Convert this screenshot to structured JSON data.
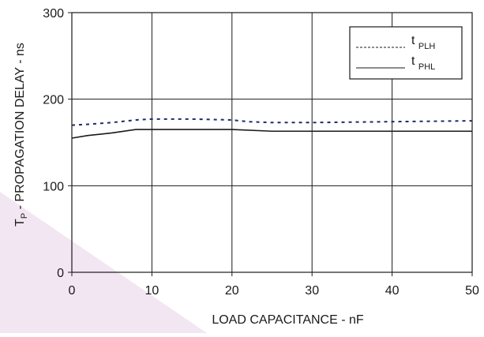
{
  "chart_data": {
    "type": "line",
    "title": "",
    "xlabel": "LOAD CAPACITANCE - nF",
    "ylabel": {
      "main": "T",
      "sub": "P",
      "rest": " - PROPAGATION DELAY - ns"
    },
    "xlim": [
      0,
      50
    ],
    "ylim": [
      0,
      300
    ],
    "xticks": [
      0,
      10,
      20,
      30,
      40,
      50
    ],
    "yticks": [
      0,
      100,
      200,
      300
    ],
    "grid": true,
    "legend_position": "top-right",
    "series": [
      {
        "name": "t PLH",
        "legend_main": "t",
        "legend_sub": "PLH",
        "style": "dashed",
        "color": "#1f2a6b",
        "x": [
          0,
          2,
          5,
          8,
          10,
          15,
          20,
          22,
          25,
          30,
          40,
          50
        ],
        "y": [
          170,
          171,
          173,
          176,
          177,
          177,
          176,
          174,
          173,
          173,
          174,
          175
        ]
      },
      {
        "name": "t PHL",
        "legend_main": "t",
        "legend_sub": "PHL",
        "style": "solid",
        "color": "#1a1a1a",
        "x": [
          0,
          2,
          5,
          8,
          10,
          15,
          20,
          25,
          30,
          40,
          50
        ],
        "y": [
          155,
          158,
          161,
          165,
          165,
          165,
          165,
          163,
          163,
          163,
          163
        ]
      }
    ]
  },
  "colors": {
    "background_wedge": "#f3e6f3",
    "grid": "#1a1a1a"
  }
}
